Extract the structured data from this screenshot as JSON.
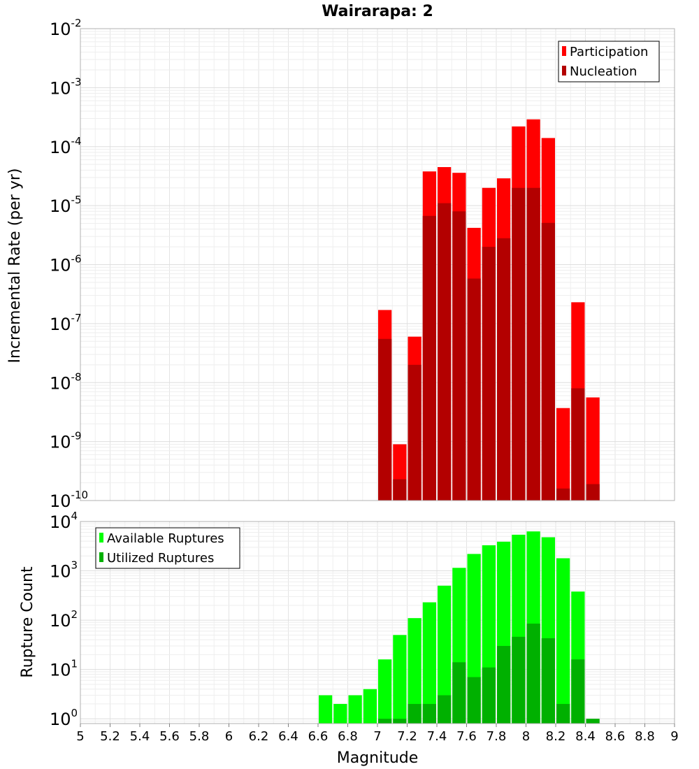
{
  "chart_data": [
    {
      "type": "bar",
      "title": "Wairarapa: 2",
      "ylabel": "Incremental Rate (per yr)",
      "xlabel": "",
      "yscale": "log",
      "ylim": [
        1e-10,
        0.01
      ],
      "y_ticks": [
        {
          "base": "10",
          "exp": "-2"
        },
        {
          "base": "10",
          "exp": "-3"
        },
        {
          "base": "10",
          "exp": "-4"
        },
        {
          "base": "10",
          "exp": "-5"
        },
        {
          "base": "10",
          "exp": "-6"
        },
        {
          "base": "10",
          "exp": "-7"
        },
        {
          "base": "10",
          "exp": "-8"
        },
        {
          "base": "10",
          "exp": "-9"
        },
        {
          "base": "10",
          "exp": "-10"
        }
      ],
      "legend_position": "top-right",
      "x": [
        7.05,
        7.15,
        7.25,
        7.35,
        7.45,
        7.55,
        7.65,
        7.75,
        7.85,
        7.95,
        8.05,
        8.15,
        8.25,
        8.35,
        8.45
      ],
      "series": [
        {
          "name": "Participation",
          "color": "#ff0000",
          "values": [
            1.7e-07,
            9e-10,
            6e-08,
            3.8e-05,
            4.5e-05,
            3.6e-05,
            4.2e-06,
            2e-05,
            2.9e-05,
            0.00022,
            0.00029,
            0.00014,
            3.7e-09,
            2.3e-07,
            5.6e-09
          ]
        },
        {
          "name": "Nucleation",
          "color": "#b30000",
          "values": [
            5.5e-08,
            2.3e-10,
            2e-08,
            6.7e-06,
            1.1e-05,
            8e-06,
            5.8e-07,
            2e-06,
            2.8e-06,
            2e-05,
            2e-05,
            5.1e-06,
            1.6e-10,
            8e-09,
            1.9e-10
          ]
        }
      ]
    },
    {
      "type": "bar",
      "xlabel": "Magnitude",
      "ylabel": "Rupture Count",
      "yscale": "log",
      "ylim": [
        0.8,
        10000
      ],
      "xlim": [
        5,
        9
      ],
      "x_tick_labels": [
        "5",
        "5.2",
        "5.4",
        "5.6",
        "5.8",
        "6",
        "6.2",
        "6.4",
        "6.6",
        "6.8",
        "7",
        "7.2",
        "7.4",
        "7.6",
        "7.8",
        "8",
        "8.2",
        "8.4",
        "8.6",
        "8.8",
        "9"
      ],
      "y_ticks": [
        {
          "base": "10",
          "exp": "0"
        },
        {
          "base": "10",
          "exp": "1"
        },
        {
          "base": "10",
          "exp": "2"
        },
        {
          "base": "10",
          "exp": "3"
        },
        {
          "base": "10",
          "exp": "4"
        }
      ],
      "legend_position": "top-left",
      "x": [
        6.65,
        6.75,
        6.85,
        6.95,
        7.05,
        7.15,
        7.25,
        7.35,
        7.45,
        7.55,
        7.65,
        7.75,
        7.85,
        7.95,
        8.05,
        8.15,
        8.25,
        8.35,
        8.45
      ],
      "series": [
        {
          "name": "Available Ruptures",
          "color": "#00ff00",
          "values": [
            3,
            2,
            3,
            4,
            16,
            50,
            110,
            230,
            500,
            1150,
            2200,
            3300,
            3900,
            5400,
            6300,
            4800,
            1800,
            380,
            0
          ]
        },
        {
          "name": "Utilized Ruptures",
          "color": "#00b000",
          "values": [
            0,
            0,
            0,
            0,
            1,
            1,
            2,
            2,
            3,
            14,
            7,
            11,
            30,
            46,
            85,
            43,
            2,
            16,
            1
          ]
        }
      ]
    }
  ]
}
